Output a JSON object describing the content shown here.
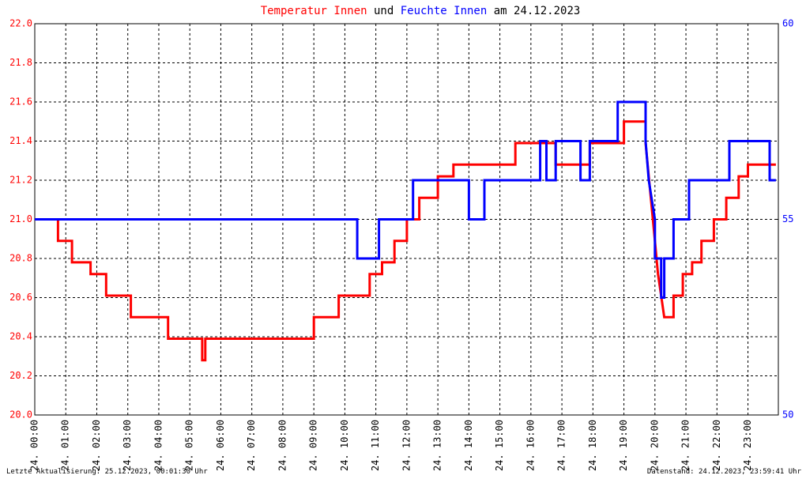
{
  "chart_data": {
    "type": "line",
    "title_parts": [
      {
        "text": "Temperatur Innen",
        "color": "#ff0000"
      },
      {
        "text": "und",
        "color": "#000000"
      },
      {
        "text": "Feuchte Innen",
        "color": "#0000ff"
      },
      {
        "text": "am 24.12.2023",
        "color": "#000000"
      }
    ],
    "footer_left": "Letzte Aktualisierung: 25.12.2023, 00:01:30 Uhr",
    "footer_right": "Datenstand: 24.12.2023, 23:59:41 Uhr",
    "grid": true,
    "xlim": [
      0,
      23.98
    ],
    "xticks": [
      {
        "value": 0,
        "label": "24. 00:00"
      },
      {
        "value": 1,
        "label": "24. 01:00"
      },
      {
        "value": 2,
        "label": "24. 02:00"
      },
      {
        "value": 3,
        "label": "24. 03:00"
      },
      {
        "value": 4,
        "label": "24. 04:00"
      },
      {
        "value": 5,
        "label": "24. 05:00"
      },
      {
        "value": 6,
        "label": "24. 06:00"
      },
      {
        "value": 7,
        "label": "24. 07:00"
      },
      {
        "value": 8,
        "label": "24. 08:00"
      },
      {
        "value": 9,
        "label": "24. 09:00"
      },
      {
        "value": 10,
        "label": "24. 10:00"
      },
      {
        "value": 11,
        "label": "24. 11:00"
      },
      {
        "value": 12,
        "label": "24. 12:00"
      },
      {
        "value": 13,
        "label": "24. 13:00"
      },
      {
        "value": 14,
        "label": "24. 14:00"
      },
      {
        "value": 15,
        "label": "24. 15:00"
      },
      {
        "value": 16,
        "label": "24. 16:00"
      },
      {
        "value": 17,
        "label": "24. 17:00"
      },
      {
        "value": 18,
        "label": "24. 18:00"
      },
      {
        "value": 19,
        "label": "24. 19:00"
      },
      {
        "value": 20,
        "label": "24. 20:00"
      },
      {
        "value": 21,
        "label": "24. 21:00"
      },
      {
        "value": 22,
        "label": "24. 22:00"
      },
      {
        "value": 23,
        "label": "24. 23:00"
      }
    ],
    "ylim": [
      20,
      22
    ],
    "yticks": [
      {
        "value": 20,
        "label": "20.0"
      },
      20.2,
      20.4,
      20.6,
      20.8,
      {
        "value": 21,
        "label": "21.0"
      },
      21.2,
      21.4,
      21.6,
      21.8,
      {
        "value": 22,
        "label": "22.0"
      }
    ],
    "y_color": "#ff0000",
    "y2lim": [
      50,
      60
    ],
    "y2ticks": [
      50,
      55,
      60
    ],
    "y2_color": "#0000ff",
    "series": [
      {
        "color": "#ff0000",
        "axis": "y",
        "x": [
          0,
          0.75,
          0.75,
          1.2,
          1.2,
          1.8,
          1.8,
          2.3,
          2.3,
          3.1,
          3.1,
          4.3,
          4.3,
          5.4,
          5.4,
          5.5,
          5.5,
          9.0,
          9.0,
          9.8,
          9.8,
          10.8,
          10.8,
          11.2,
          11.2,
          11.6,
          11.6,
          12.0,
          12.0,
          12.4,
          12.4,
          13.0,
          13.0,
          13.5,
          13.5,
          15.5,
          15.5,
          16.8,
          16.8,
          17.9,
          17.9,
          19.0,
          19.0,
          19.7,
          19.7,
          19.8,
          20.0,
          20.1,
          20.2,
          20.3,
          20.6,
          20.6,
          20.9,
          20.9,
          21.2,
          21.2,
          21.5,
          21.5,
          21.9,
          21.9,
          22.3,
          22.3,
          22.7,
          22.7,
          23.0,
          23.0,
          23.9
        ],
        "values": [
          21.0,
          21.0,
          20.89,
          20.89,
          20.78,
          20.78,
          20.72,
          20.72,
          20.61,
          20.61,
          20.5,
          20.5,
          20.39,
          20.39,
          20.28,
          20.28,
          20.39,
          20.39,
          20.5,
          20.5,
          20.61,
          20.61,
          20.72,
          20.72,
          20.78,
          20.78,
          20.89,
          20.89,
          21.0,
          21.0,
          21.11,
          21.11,
          21.22,
          21.22,
          21.28,
          21.28,
          21.39,
          21.39,
          21.28,
          21.28,
          21.39,
          21.39,
          21.5,
          21.5,
          21.39,
          21.22,
          20.89,
          20.72,
          20.61,
          20.5,
          20.5,
          20.61,
          20.61,
          20.72,
          20.72,
          20.78,
          20.78,
          20.89,
          20.89,
          21.0,
          21.0,
          21.11,
          21.11,
          21.22,
          21.22,
          21.28,
          21.28
        ]
      },
      {
        "color": "#0000ff",
        "axis": "y2",
        "x": [
          0,
          10.4,
          10.4,
          11.1,
          11.1,
          12.2,
          12.2,
          14.0,
          14.0,
          14.5,
          14.5,
          16.3,
          16.3,
          16.5,
          16.5,
          16.8,
          16.8,
          17.6,
          17.6,
          17.9,
          17.9,
          18.8,
          18.8,
          19.7,
          19.7,
          19.8,
          20.0,
          20.0,
          20.2,
          20.2,
          20.3,
          20.3,
          20.6,
          20.6,
          21.1,
          21.1,
          22.4,
          22.4,
          23.7,
          23.7,
          23.9
        ],
        "values": [
          55,
          55,
          54,
          54,
          55,
          55,
          56,
          56,
          55,
          55,
          56,
          56,
          57,
          57,
          56,
          56,
          57,
          57,
          56,
          56,
          57,
          57,
          58,
          58,
          57,
          56,
          55,
          54,
          54,
          53,
          53,
          54,
          54,
          55,
          55,
          56,
          56,
          57,
          57,
          56,
          56
        ]
      }
    ]
  }
}
